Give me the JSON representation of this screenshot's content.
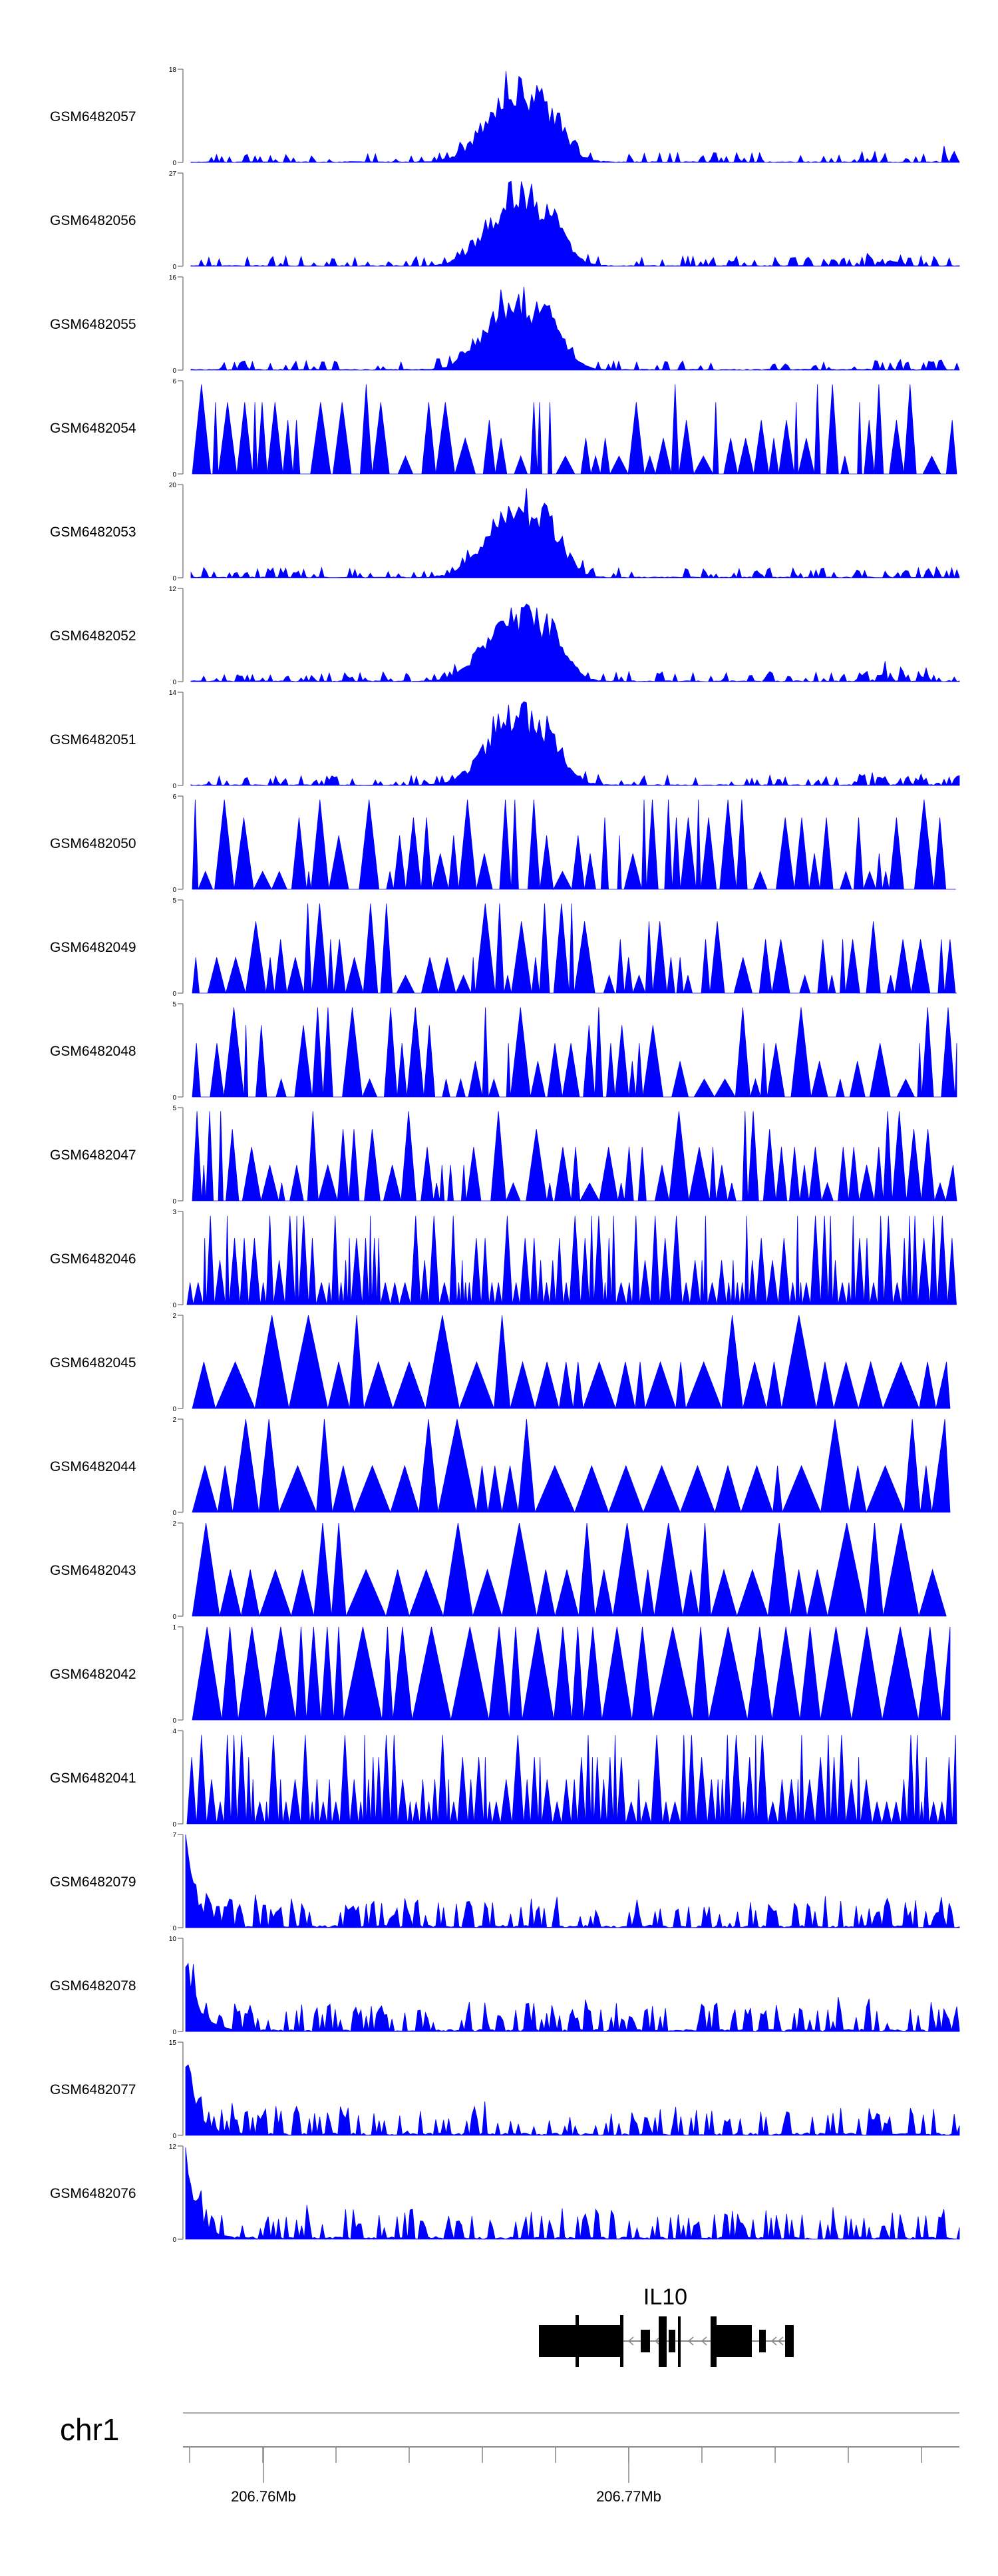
{
  "figure": {
    "chromosome": "chr1",
    "axis_ticks": [
      "206.76Mb",
      "206.77Mb"
    ],
    "gene_label": "IL10",
    "track_color": "#0000ff"
  },
  "chart_data": {
    "type": "area",
    "chromosome": "chr1",
    "x_ticks": [
      "206.76Mb",
      "206.77Mb"
    ],
    "gene": "IL10",
    "tracks": [
      {
        "name": "GSM6482057",
        "ymax": 18,
        "pattern": "peak"
      },
      {
        "name": "GSM6482056",
        "ymax": 27,
        "pattern": "peak"
      },
      {
        "name": "GSM6482055",
        "ymax": 16,
        "pattern": "peak"
      },
      {
        "name": "GSM6482054",
        "ymax": 6,
        "pattern": "spiky"
      },
      {
        "name": "GSM6482053",
        "ymax": 20,
        "pattern": "peak"
      },
      {
        "name": "GSM6482052",
        "ymax": 12,
        "pattern": "peak"
      },
      {
        "name": "GSM6482051",
        "ymax": 14,
        "pattern": "peak"
      },
      {
        "name": "GSM6482050",
        "ymax": 6,
        "pattern": "spiky"
      },
      {
        "name": "GSM6482049",
        "ymax": 5,
        "pattern": "spiky"
      },
      {
        "name": "GSM6482048",
        "ymax": 5,
        "pattern": "spiky"
      },
      {
        "name": "GSM6482047",
        "ymax": 5,
        "pattern": "spiky"
      },
      {
        "name": "GSM6482046",
        "ymax": 3,
        "pattern": "dense"
      },
      {
        "name": "GSM6482045",
        "ymax": 2,
        "pattern": "triangles"
      },
      {
        "name": "GSM6482044",
        "ymax": 2,
        "pattern": "triangles"
      },
      {
        "name": "GSM6482043",
        "ymax": 2,
        "pattern": "triangles"
      },
      {
        "name": "GSM6482042",
        "ymax": 1,
        "pattern": "triangles"
      },
      {
        "name": "GSM6482041",
        "ymax": 4,
        "pattern": "dense"
      },
      {
        "name": "GSM6482079",
        "ymax": 7,
        "pattern": "leftpeak"
      },
      {
        "name": "GSM6482078",
        "ymax": 10,
        "pattern": "leftpeak"
      },
      {
        "name": "GSM6482077",
        "ymax": 15,
        "pattern": "leftpeak"
      },
      {
        "name": "GSM6482076",
        "ymax": 12,
        "pattern": "leftpeak"
      }
    ]
  }
}
